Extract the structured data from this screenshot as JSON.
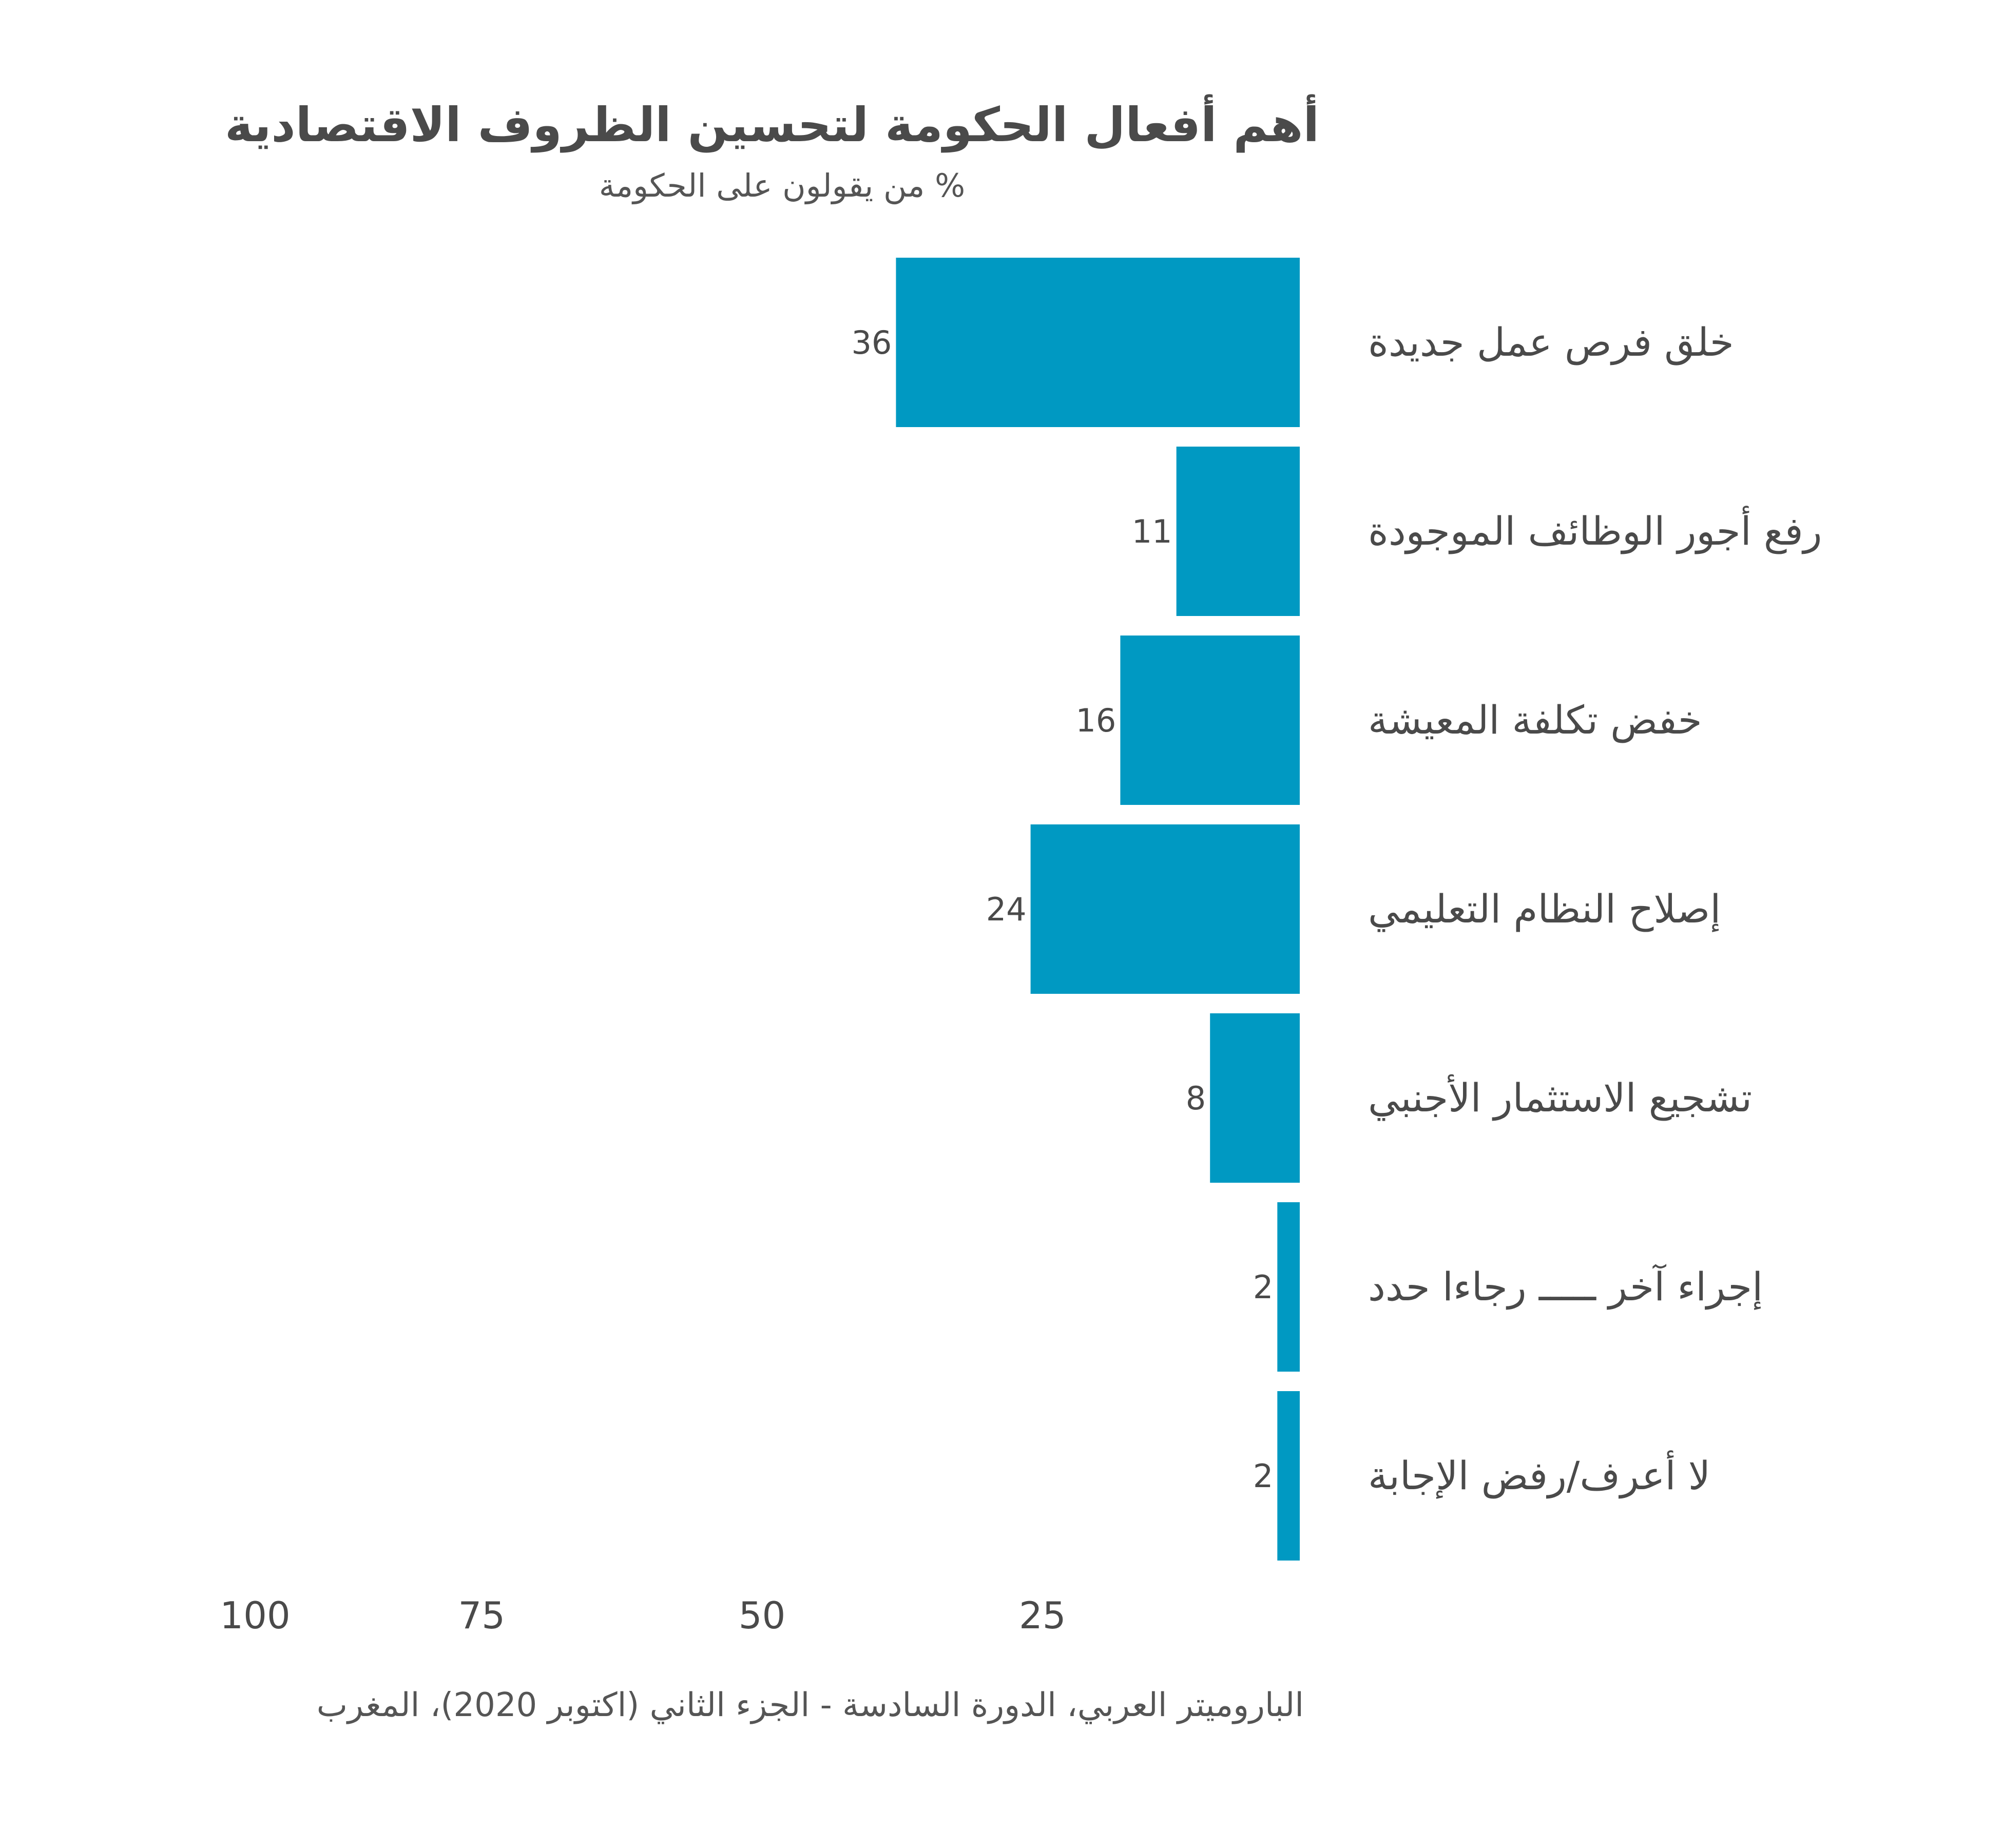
{
  "title": "أهم أفعال الحكومة لتحسين الظروف الاقتصادية",
  "subtitle": "% من يقولون على الحكومة",
  "source": "الباروميتر العربي، الدورة السادسة - الجزء الثاني (اكتوبر 2020)، المغرب",
  "colors": {
    "bar": "#0099C2",
    "text": "#4a4a4a"
  },
  "chart_data": {
    "type": "bar",
    "orientation": "horizontal",
    "categories": [
      "خلق فرص عمل جديدة",
      "رفع أجور الوظائف الموجودة",
      "خفض تكلفة المعيشة",
      "إصلاح النظام التعليمي",
      "تشجيع الاستثمار الأجنبي",
      "إجراء آخر ـــــ رجاءا حدد",
      "لا أعرف/رفض الإجابة"
    ],
    "values": [
      36,
      11,
      16,
      24,
      8,
      2,
      2
    ],
    "xlim": [
      0,
      100
    ],
    "xticks": [
      "100",
      "75",
      "50",
      "25"
    ],
    "xtick_values": [
      100,
      75,
      50,
      25
    ],
    "data_labels": true,
    "grid": false,
    "legend": "none"
  }
}
